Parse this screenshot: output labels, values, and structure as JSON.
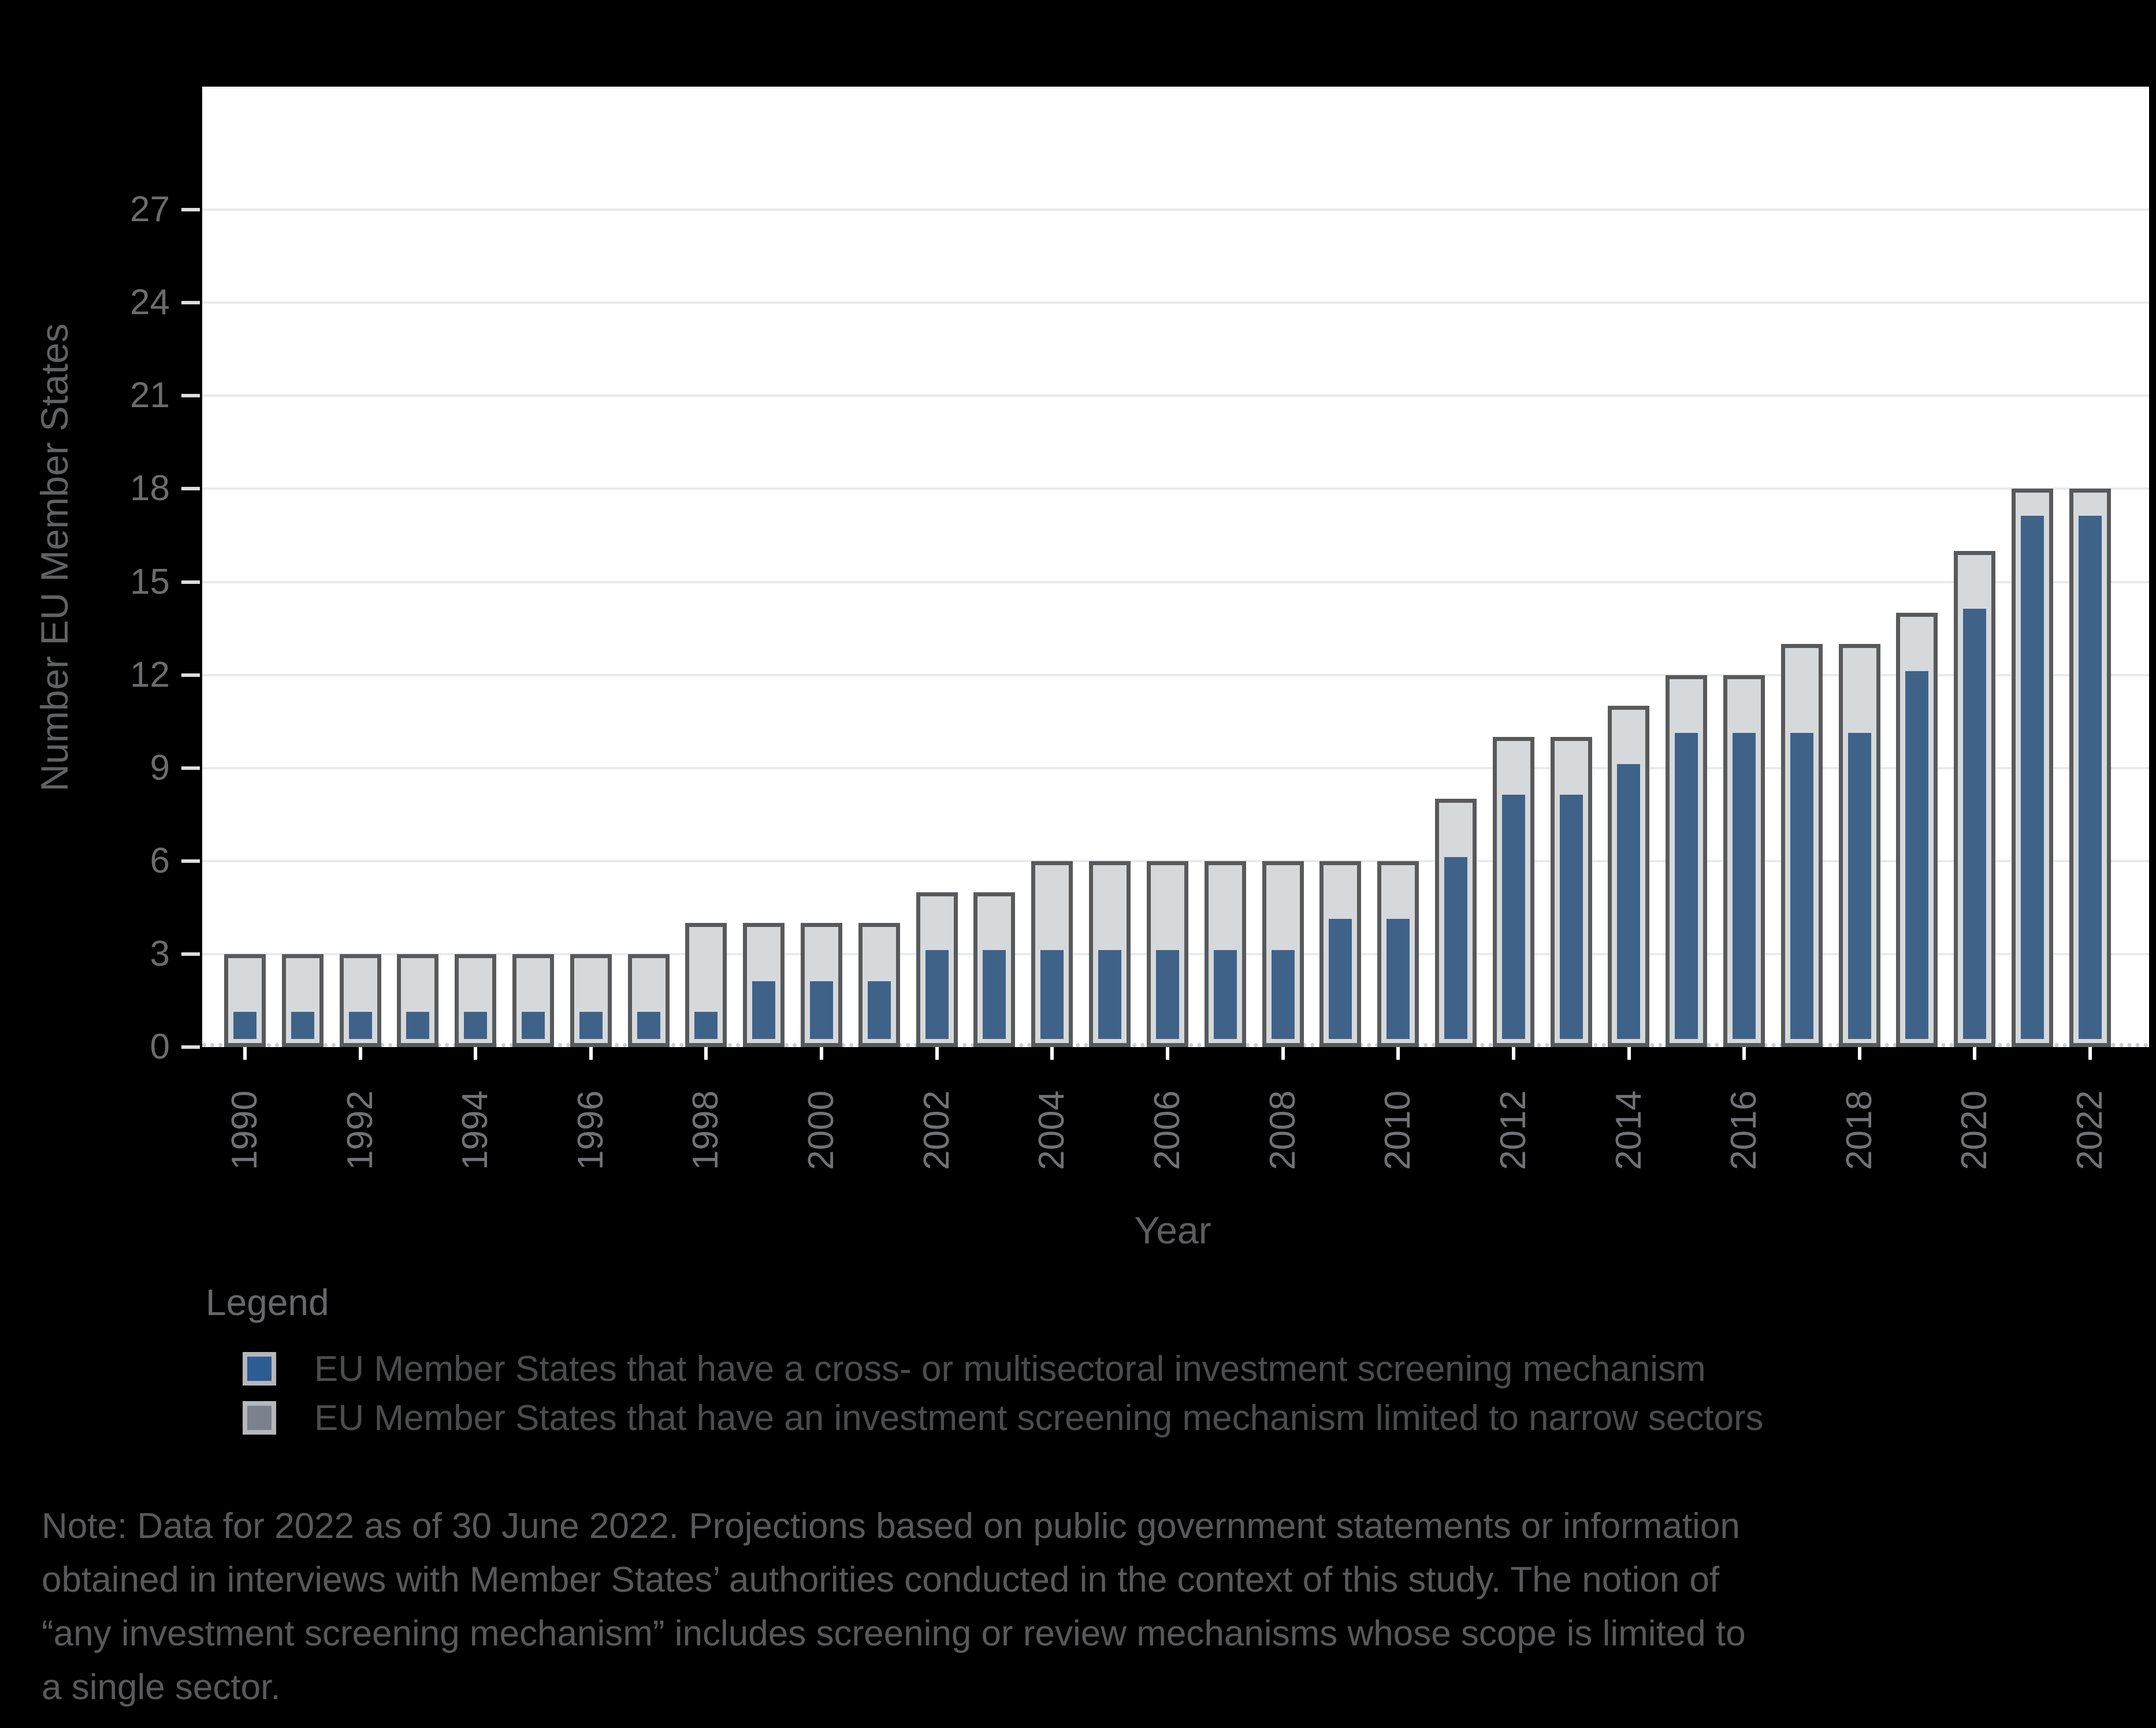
{
  "chart_data": {
    "type": "bar",
    "variant": "overlaid-bars",
    "title": "",
    "xlabel": "Year",
    "ylabel": "Number EU Member States",
    "categories": [
      1990,
      1991,
      1992,
      1993,
      1994,
      1995,
      1996,
      1997,
      1998,
      1999,
      2000,
      2001,
      2002,
      2003,
      2004,
      2005,
      2006,
      2007,
      2008,
      2009,
      2010,
      2011,
      2012,
      2013,
      2014,
      2015,
      2016,
      2017,
      2018,
      2019,
      2020,
      2021,
      2022
    ],
    "series": [
      {
        "name": "EU Member States that have a cross- or multisectoral investment screening mechanism",
        "role": "inner-bar",
        "color": "#3f6289",
        "values": [
          1,
          1,
          1,
          1,
          1,
          1,
          1,
          1,
          1,
          2,
          2,
          2,
          3,
          3,
          3,
          3,
          3,
          3,
          3,
          4,
          4,
          6,
          8,
          8,
          9,
          10,
          10,
          10,
          10,
          12,
          14,
          17,
          17
        ]
      },
      {
        "name": "EU Member States that have an investment screening mechanism limited to narrow sectors",
        "role": "outer-bar",
        "color": "#d5d9dc",
        "border_color": "#58595b",
        "values": [
          3,
          3,
          3,
          3,
          3,
          3,
          3,
          3,
          4,
          4,
          4,
          4,
          5,
          5,
          6,
          6,
          6,
          6,
          6,
          6,
          6,
          8,
          10,
          10,
          11,
          12,
          12,
          13,
          13,
          14,
          16,
          18,
          18
        ]
      }
    ],
    "ylim": [
      0,
      28
    ],
    "y_ticks": [
      0,
      3,
      6,
      9,
      12,
      15,
      18,
      21,
      24,
      27
    ],
    "x_tick_labels": [
      "1990",
      "1992",
      "1994",
      "1996",
      "1998",
      "2000",
      "2002",
      "2004",
      "2006",
      "2008",
      "2010",
      "2012",
      "2014",
      "2016",
      "2018",
      "2020",
      "2022"
    ],
    "grid": "horizontal",
    "zero_line": "dotted",
    "legend_position": "bottom-left"
  },
  "legend": {
    "heading": "Legend",
    "items": [
      {
        "label": "EU Member States that have a cross- or multisectoral investment screening mechanism",
        "swatch_color": "#2d5c94",
        "swatch_border": "#b5b7b9"
      },
      {
        "label": "EU Member States that have an investment screening mechanism limited to narrow sectors",
        "swatch_color": "#7c828d",
        "swatch_border": "#b5b7b9"
      }
    ]
  },
  "note": {
    "lines": [
      "Note: Data for 2022 as of 30 June 2022. Projections based on public government statements or information",
      "obtained in interviews with Member States’ authorities conducted in the context of this study. The notion of",
      "“any investment screening mechanism” includes screening or review mechanisms whose scope is limited to",
      "a single sector."
    ]
  },
  "colors": {
    "page_background": "#000000",
    "plot_background": "#ffffff",
    "gridline": "#e9eaeb",
    "zero_dotted_line": "#c9cdd1",
    "bar_inner_blue": "#3f6289",
    "bar_outer_gray": "#d5d9dc",
    "bar_border": "#58595b",
    "tick_label_text": "#6b6c6e",
    "axis_title_text": "#5c5d5f",
    "legend_text": "#4b4c4e",
    "note_text": "#59595b",
    "x_tick_mark": "#ffffff",
    "y_tick_mark": "#dcdedf"
  }
}
